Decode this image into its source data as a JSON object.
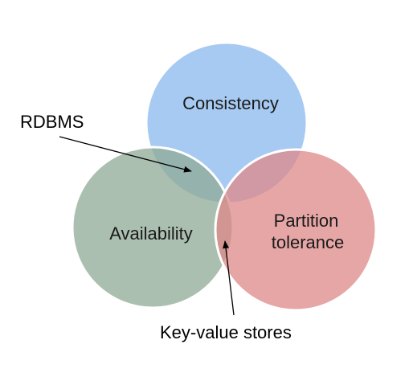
{
  "sets": [
    {
      "id": "consistency",
      "label": "Consistency",
      "color": "#8ab8ee"
    },
    {
      "id": "availability",
      "label": "Availability",
      "color": "#8faa96"
    },
    {
      "id": "partition",
      "label_line1": "Partition",
      "label_line2": "tolerance",
      "color": "#de8888"
    }
  ],
  "callouts": [
    {
      "id": "rdbms",
      "label": "RDBMS"
    },
    {
      "id": "key-value",
      "label": "Key-value stores"
    }
  ]
}
